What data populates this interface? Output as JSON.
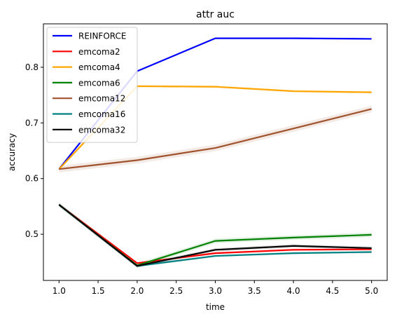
{
  "chart_data": {
    "type": "line",
    "title": "attr auc",
    "xlabel": "time",
    "ylabel": "accuracy",
    "x": [
      1.0,
      2.0,
      3.0,
      4.0,
      5.0
    ],
    "xlim": [
      0.8,
      5.2
    ],
    "ylim": [
      0.417,
      0.878
    ],
    "x_ticks": [
      "1.0",
      "1.5",
      "2.0",
      "2.5",
      "3.0",
      "3.5",
      "4.0",
      "4.5",
      "5.0"
    ],
    "y_ticks": [
      "0.5",
      "0.6",
      "0.7",
      "0.8"
    ],
    "grid": false,
    "legend_position": "top-left",
    "series": [
      {
        "name": "REINFORCE",
        "color": "#0000ff",
        "values": [
          0.617,
          0.793,
          0.852,
          0.852,
          0.851
        ],
        "band": 0.001
      },
      {
        "name": "emcoma2",
        "color": "#ff0000",
        "values": [
          0.553,
          0.448,
          0.466,
          0.472,
          0.473
        ],
        "band": 0.002
      },
      {
        "name": "emcoma4",
        "color": "#ffa500",
        "values": [
          0.617,
          0.766,
          0.765,
          0.757,
          0.755
        ],
        "band": 0.002
      },
      {
        "name": "emcoma6",
        "color": "#008000",
        "values": [
          0.553,
          0.444,
          0.488,
          0.494,
          0.499
        ],
        "band": 0.004
      },
      {
        "name": "emcoma12",
        "color": "#a0522d",
        "values": [
          0.617,
          0.633,
          0.655,
          0.69,
          0.725
        ],
        "band": 0.006
      },
      {
        "name": "emcoma16",
        "color": "#008080",
        "values": [
          0.553,
          0.443,
          0.461,
          0.466,
          0.468
        ],
        "band": 0.002
      },
      {
        "name": "emcoma32",
        "color": "#000000",
        "values": [
          0.553,
          0.443,
          0.472,
          0.479,
          0.475
        ],
        "band": 0.003
      }
    ]
  }
}
